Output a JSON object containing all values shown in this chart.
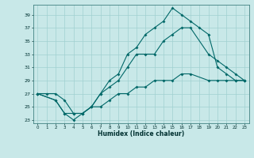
{
  "xlabel": "Humidex (Indice chaleur)",
  "bg_color": "#c8e8e8",
  "grid_color": "#a0d0d0",
  "line_color": "#006868",
  "xlim": [
    -0.5,
    23.5
  ],
  "ylim": [
    22.5,
    40.5
  ],
  "yticks": [
    23,
    25,
    27,
    29,
    31,
    33,
    35,
    37,
    39
  ],
  "xticks": [
    0,
    1,
    2,
    3,
    4,
    5,
    6,
    7,
    8,
    9,
    10,
    11,
    12,
    13,
    14,
    15,
    16,
    17,
    18,
    19,
    20,
    21,
    22,
    23
  ],
  "line1_x": [
    0,
    1,
    2,
    3,
    4,
    5,
    6,
    7,
    8,
    9,
    10,
    11,
    12,
    13,
    14,
    15,
    16,
    17,
    18,
    19,
    20,
    21,
    22,
    23
  ],
  "line1_y": [
    27,
    27,
    27,
    26,
    24,
    24,
    25,
    27,
    29,
    30,
    33,
    34,
    36,
    37,
    38,
    40,
    39,
    38,
    37,
    36,
    31,
    30,
    29,
    29
  ],
  "line2_x": [
    0,
    2,
    3,
    4,
    5,
    6,
    7,
    8,
    9,
    10,
    11,
    12,
    13,
    14,
    15,
    16,
    17,
    19,
    20,
    21,
    22,
    23
  ],
  "line2_y": [
    27,
    26,
    24,
    24,
    24,
    25,
    27,
    28,
    29,
    31,
    33,
    33,
    33,
    35,
    36,
    37,
    37,
    33,
    32,
    31,
    30,
    29
  ],
  "line3_x": [
    0,
    2,
    3,
    4,
    5,
    6,
    7,
    8,
    9,
    10,
    11,
    12,
    13,
    14,
    15,
    16,
    17,
    19,
    20,
    21,
    22,
    23
  ],
  "line3_y": [
    27,
    26,
    24,
    23,
    24,
    25,
    25,
    26,
    27,
    27,
    28,
    28,
    29,
    29,
    29,
    30,
    30,
    29,
    29,
    29,
    29,
    29
  ]
}
